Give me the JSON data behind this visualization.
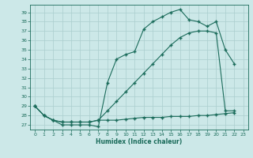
{
  "line1_x": [
    0,
    1,
    2,
    3,
    4,
    5,
    6,
    7,
    8,
    9,
    10,
    11,
    12,
    13,
    14,
    15,
    16,
    17,
    18,
    19,
    20,
    21,
    22
  ],
  "line1_y": [
    29,
    28,
    27.5,
    27,
    27,
    27,
    27,
    26.8,
    31.5,
    34,
    34.5,
    34.8,
    37.2,
    38,
    38.5,
    39,
    39.3,
    38.2,
    38.0,
    37.5,
    38.0,
    35.0,
    33.5
  ],
  "line2_x": [
    0,
    1,
    2,
    3,
    4,
    5,
    6,
    7,
    8,
    9,
    10,
    11,
    12,
    13,
    14,
    15,
    16,
    17,
    18,
    19,
    20,
    21,
    22
  ],
  "line2_y": [
    29,
    28,
    27.5,
    27.3,
    27.3,
    27.3,
    27.3,
    27.5,
    28.5,
    29.5,
    30.5,
    31.5,
    32.5,
    33.5,
    34.5,
    35.5,
    36.3,
    36.8,
    37.0,
    37.0,
    36.8,
    28.5,
    28.5
  ],
  "line3_x": [
    0,
    1,
    2,
    3,
    4,
    5,
    6,
    7,
    8,
    9,
    10,
    11,
    12,
    13,
    14,
    15,
    16,
    17,
    18,
    19,
    20,
    21,
    22
  ],
  "line3_y": [
    29,
    28,
    27.5,
    27.3,
    27.3,
    27.3,
    27.3,
    27.5,
    27.5,
    27.5,
    27.6,
    27.7,
    27.8,
    27.8,
    27.8,
    27.9,
    27.9,
    27.9,
    28.0,
    28.0,
    28.1,
    28.2,
    28.3
  ],
  "color": "#1a6b5a",
  "bg_color": "#cce8e8",
  "grid_color": "#aacece",
  "xlabel": "Humidex (Indice chaleur)",
  "ylim": [
    26.5,
    39.8
  ],
  "xlim": [
    -0.5,
    23.5
  ],
  "yticks": [
    27,
    28,
    29,
    30,
    31,
    32,
    33,
    34,
    35,
    36,
    37,
    38,
    39
  ],
  "xticks": [
    0,
    1,
    2,
    3,
    4,
    5,
    6,
    7,
    8,
    9,
    10,
    11,
    12,
    13,
    14,
    15,
    16,
    17,
    18,
    19,
    20,
    21,
    22,
    23
  ]
}
